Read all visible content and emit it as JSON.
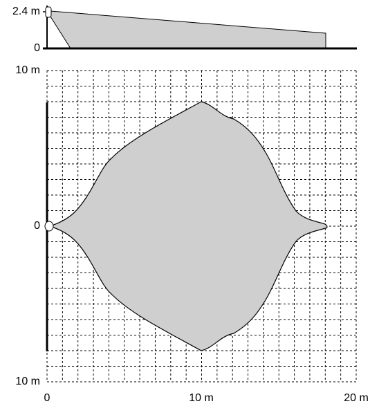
{
  "side_view": {
    "height_label": "2.4 m",
    "zero_label": "0"
  },
  "top_view": {
    "y_labels": [
      "10 m",
      "0",
      "10 m"
    ],
    "x_labels": [
      "0",
      "10 m",
      "20 m"
    ]
  }
}
